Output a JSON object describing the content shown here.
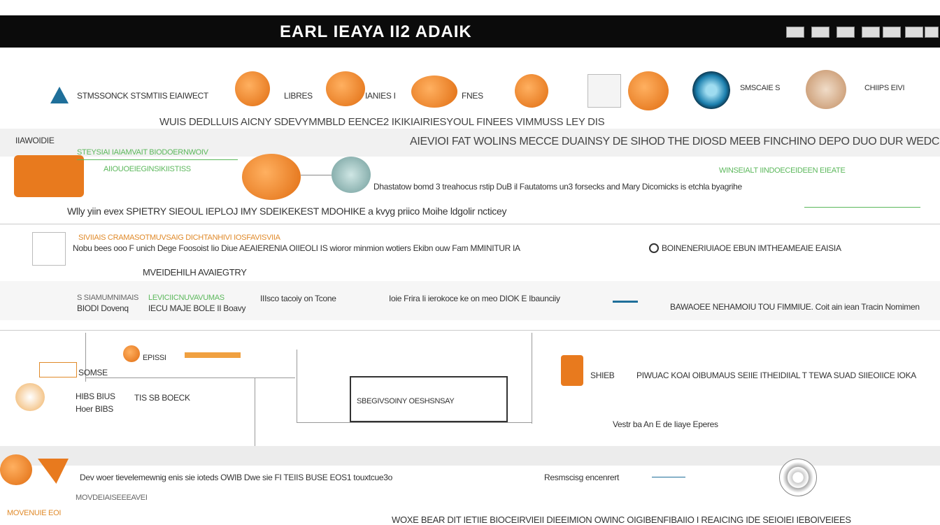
{
  "header": {
    "title": "EARL IEAYA II2 ADAIK"
  },
  "toolbar": [
    "STMSSONCK STSMTIIS EIAIWECT",
    "LIBRES",
    "IANIES I",
    "FNES",
    "SMSCAIE S",
    "CHIIPS EIVI"
  ],
  "intro": "WUIS DEDLLUIS AICNY SDEVYMMBLD EENCE2 IKIKIAIRIESYOUL FINEES VIMMUSS LEY DIS",
  "section1": {
    "left_label": "IIAWOIDIE",
    "heading": "AIEVIOI FAT WOLINS MECCE DUAINSY DE SIHOD THE DIOSD MEEB FINCHINO DEPO DUO DUR WEDCIUINIES",
    "green_1": "STEYSIAI IAIAMVAIT BIODOERNWOIV",
    "green_2": "AIIOUOEIEGINSIKIISTISS",
    "green_right": "WINSEIALT IINDOECEIDEEN EIEATE",
    "body": "Dhastatow bomd 3 treahocus rstip DuB il Fautatoms un3 forsecks and Mary Dicomicks is etchla byagrihe",
    "summary": "Wlly yiin evex SPIETRY SIEOUL IEPLOJ IMY SDEIKEKEST MDOHIKE a kvyg priico Moihe ldgolir ncticey"
  },
  "section2": {
    "orange": "SIVIIAIS CRAMASOTMUVSAIG DICHTANHIVI IOSFAVISVIIA",
    "body": "Nobu bees ooo F unich Dege Foosoist Iio Diue AEAIERENIA OIIEOLI IS wioror minmion wotiers Ekibn ouw Fam MMINITUR IA",
    "right": "BOINENERIUIAOE EBUN IMTHEAMEAIE EAISIA",
    "sub": "MVEIDEHILH AVAIEGTRY"
  },
  "section3": {
    "col1": [
      "S SIAMUMNIMAIS",
      "BIODI Dovenq"
    ],
    "col2": [
      "LEVICIICNUVAVUMAS",
      "IECU MAJE BOLE II Boavy"
    ],
    "col3": "IIIsco tacoiy on Tcone",
    "col4": "Ioie Frira Ii ierokoce ke on meo DIOK E Ibaunciiy",
    "col5": "BAWAOEE NEHAMOIU TOU FIMMIUE. Coit ain iean Tracin Nomimen"
  },
  "diagram": {
    "node_1": "SOMSE",
    "node_2": "EPISSI",
    "node_3": "HIBS BIUS",
    "node_4": "TIS SB BOECK",
    "node_5": "Hoer BIBS",
    "box": "SBEGIVSOINY OESHSNSAY",
    "node_6": "SHIEB",
    "note": "PIWUAC KOAI OIBUMAUS SEIIE ITHEIDIIAL T TEWA SUAD SIIEOIICE IOKA",
    "caption": "Vestr ba An E de Iiaye Eperes"
  },
  "footer": {
    "line": "Dev woer tievelemewnig enis sie ioteds OWIB Dwe sie FI TEIIS BUSE EOS1 touxtcue3o",
    "right": "Resmscisg encenrert",
    "small_1": "MOVDEIAISEEEAVEI",
    "small_2": "MOVENUIE EOI",
    "bottom": "WOXE BEAR DIT IETIIE BIOCEIRVIEII DIEEIMION OWINC OIGIBENFIBAIIO I REAICING IDE SEIOIEI IEBOIVEIEES"
  }
}
